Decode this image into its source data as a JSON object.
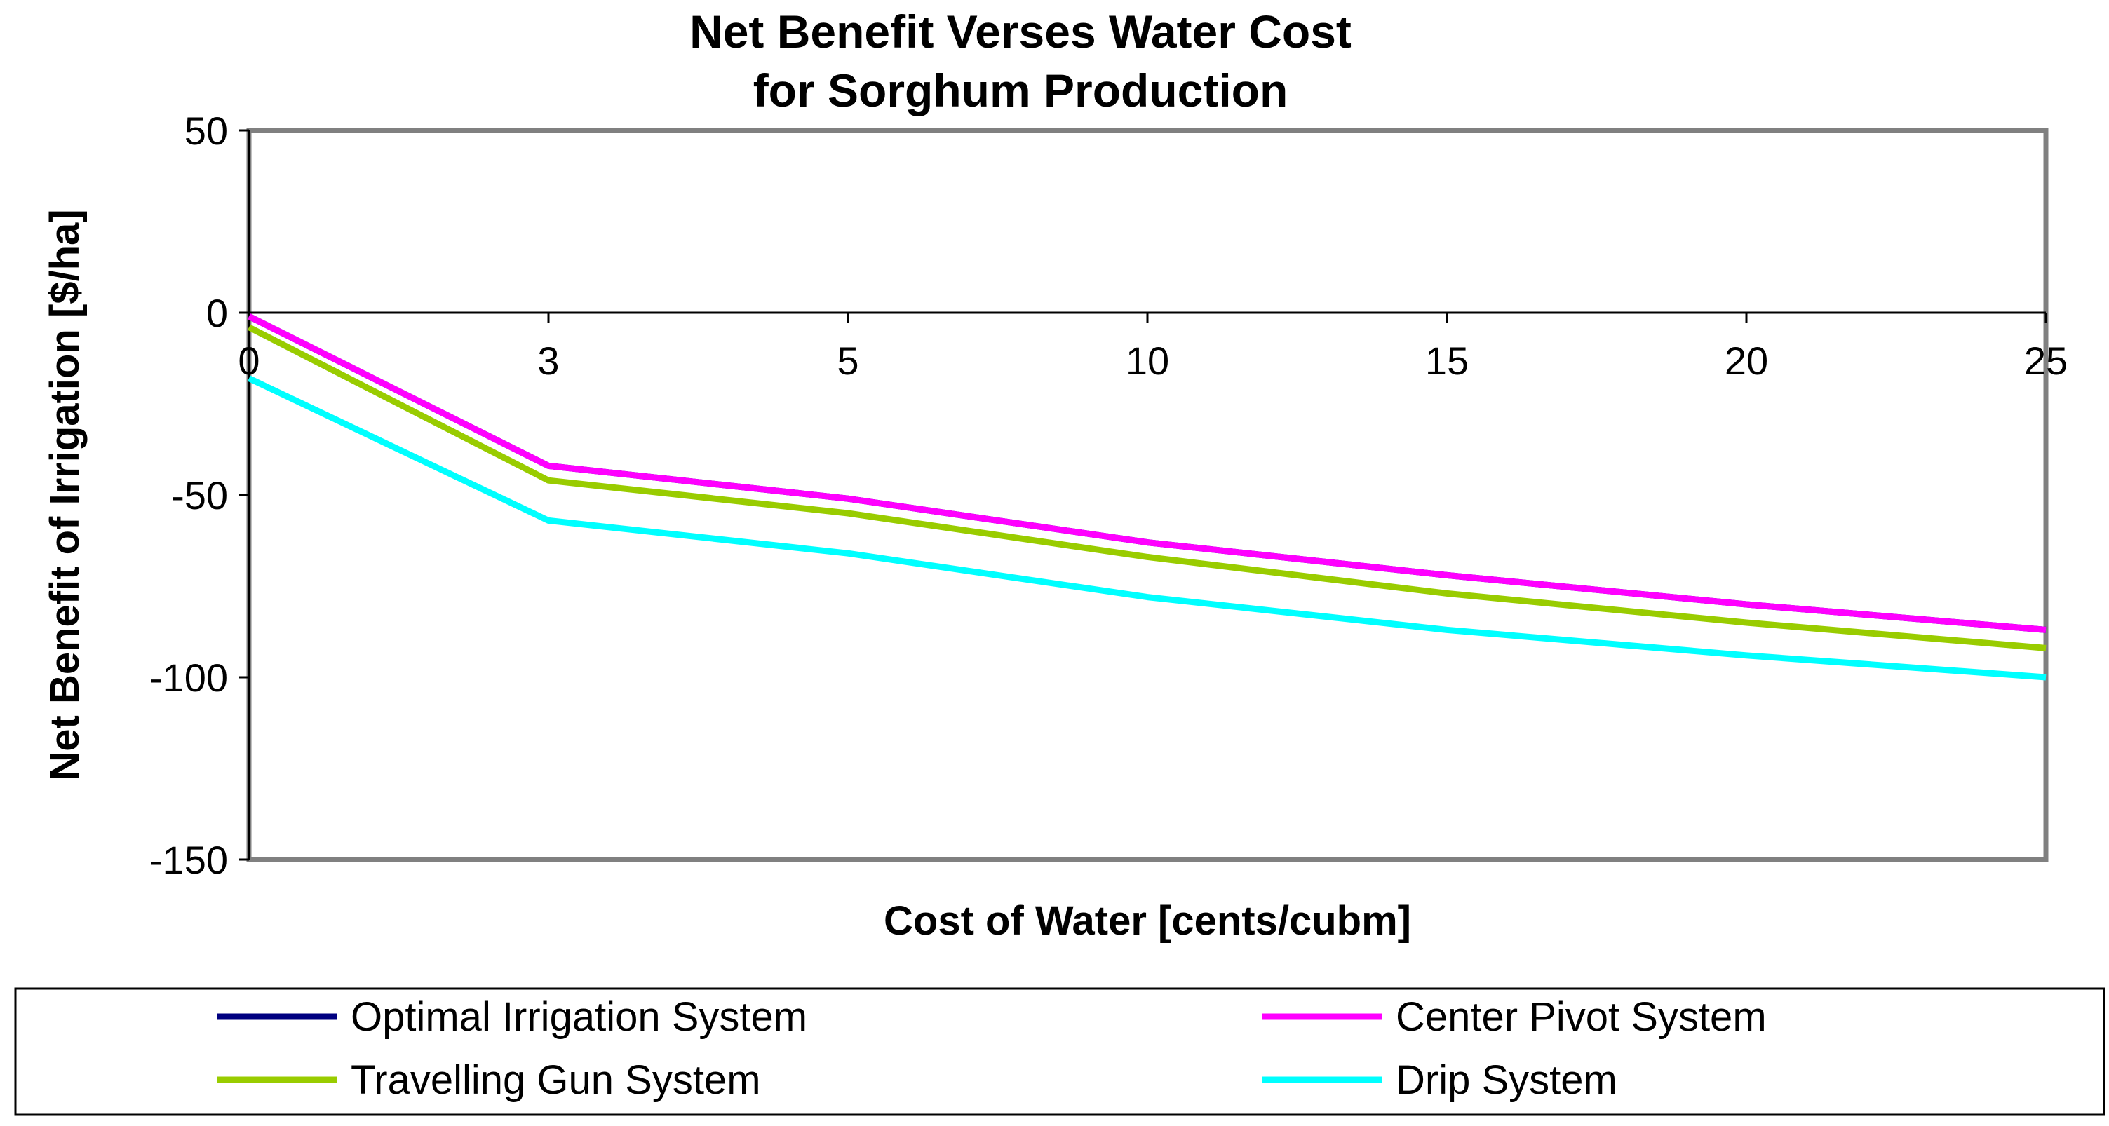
{
  "chart_data": {
    "type": "line",
    "title": [
      "Net Benefit Verses Water Cost",
      "for Sorghum Production"
    ],
    "xlabel": "Cost of Water [cents/cubm]",
    "ylabel": "Net Benefit of Irrigation [$/ha]",
    "x": [
      "0",
      "3",
      "5",
      "10",
      "15",
      "20",
      "25"
    ],
    "ylim": [
      -150,
      50
    ],
    "yticks": [
      "50",
      "0",
      "-50",
      "-100",
      "-150"
    ],
    "grid": false,
    "legend_position": "bottom",
    "series": [
      {
        "name": "Optimal Irrigation System",
        "color": "#000080",
        "values": [
          -1,
          -42,
          -51,
          -63,
          -72,
          -80,
          -87
        ]
      },
      {
        "name": "Center Pivot System",
        "color": "#ff00ff",
        "values": [
          -1,
          -42,
          -51,
          -63,
          -72,
          -80,
          -87
        ]
      },
      {
        "name": "Travelling Gun System",
        "color": "#99cc00",
        "values": [
          -4,
          -46,
          -55,
          -67,
          -77,
          -85,
          -92
        ]
      },
      {
        "name": "Drip System",
        "color": "#00ffff",
        "values": [
          -18,
          -57,
          -66,
          -78,
          -87,
          -94,
          -100
        ]
      }
    ]
  }
}
